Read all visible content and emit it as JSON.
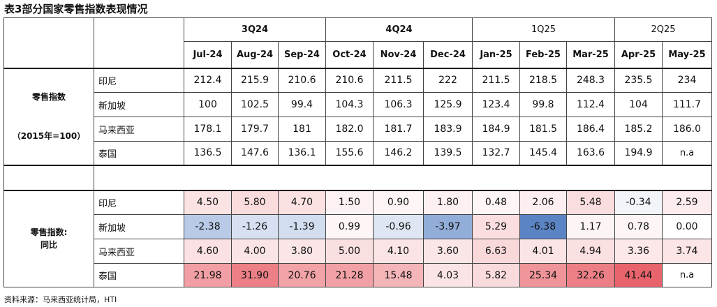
{
  "title": "表3部分国家零售指数表现情况",
  "header": {
    "quarters": [
      "3Q24",
      "4Q24",
      "1Q25",
      "2Q25"
    ],
    "months": [
      "Jul-24",
      "Aug-24",
      "Sep-24",
      "Oct-24",
      "Nov-24",
      "Dec-24",
      "Jan-25",
      "Feb-25",
      "Mar-25",
      "Apr-25",
      "May-25"
    ]
  },
  "index_section": {
    "label_line1": "零售指数",
    "label_line2": "（2015年=100）",
    "rows": [
      {
        "country": "印尼",
        "values": [
          "212.4",
          "215.9",
          "210.6",
          "210.6",
          "211.5",
          "222",
          "211.5",
          "218.5",
          "248.3",
          "235.5",
          "234"
        ]
      },
      {
        "country": "新加坡",
        "values": [
          "100",
          "102.5",
          "99.4",
          "104.3",
          "106.3",
          "125.9",
          "123.4",
          "99.8",
          "112.4",
          "104",
          "111.7"
        ]
      },
      {
        "country": "马来西亚",
        "values": [
          "178.1",
          "179.7",
          "181",
          "182.0",
          "181.7",
          "183.9",
          "184.9",
          "181.5",
          "186.4",
          "185.2",
          "186.0"
        ]
      },
      {
        "country": "泰国",
        "values": [
          "136.5",
          "147.6",
          "136.1",
          "155.6",
          "146.2",
          "139.5",
          "132.7",
          "145.4",
          "163.6",
          "194.9",
          "n.a"
        ]
      }
    ]
  },
  "yoy_section": {
    "label_line1": "零售指数:",
    "label_line2": "同比",
    "rows": [
      {
        "country": "印尼",
        "values": [
          "4.50",
          "5.80",
          "4.70",
          "1.50",
          "0.90",
          "1.80",
          "0.48",
          "2.06",
          "5.48",
          "-0.34",
          "2.59"
        ]
      },
      {
        "country": "新加坡",
        "values": [
          "-2.38",
          "-1.26",
          "-1.39",
          "0.99",
          "-0.96",
          "-3.97",
          "5.29",
          "-6.38",
          "1.17",
          "0.78",
          "0.00"
        ]
      },
      {
        "country": "马来西亚",
        "values": [
          "4.60",
          "4.00",
          "3.80",
          "5.00",
          "4.10",
          "3.60",
          "6.63",
          "4.01",
          "4.94",
          "3.36",
          "3.74"
        ]
      },
      {
        "country": "泰国",
        "values": [
          "21.98",
          "31.90",
          "20.76",
          "21.28",
          "15.48",
          "4.03",
          "5.82",
          "25.34",
          "32.26",
          "41.44",
          "n.a"
        ]
      }
    ]
  },
  "yoy_colors": {
    "negative": "#5b84c4",
    "positive": "#e8646c",
    "neutral": "#ffffff"
  },
  "source": "资料来源：马来西亚统计局，HTI"
}
